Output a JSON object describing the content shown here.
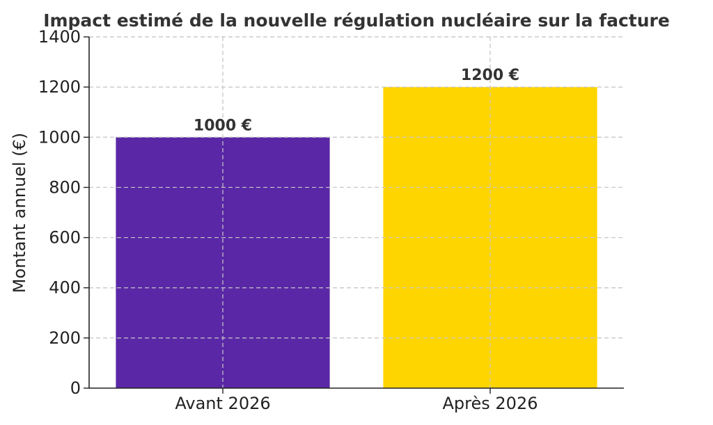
{
  "chart_data": {
    "type": "bar",
    "title": "Impact estimé de la nouvelle régulation nucléaire sur la facture",
    "xlabel": "",
    "ylabel": "Montant annuel (€)",
    "categories": [
      "Avant 2026",
      "Après 2026"
    ],
    "values": [
      1000,
      1200
    ],
    "data_labels": [
      "1000 €",
      "1200 €"
    ],
    "colors": [
      "#5a28a6",
      "#ffd500"
    ],
    "ylim": [
      0,
      1400
    ],
    "yticks": [
      0,
      200,
      400,
      600,
      800,
      1000,
      1200,
      1400
    ],
    "grid": true,
    "legend": "none"
  }
}
